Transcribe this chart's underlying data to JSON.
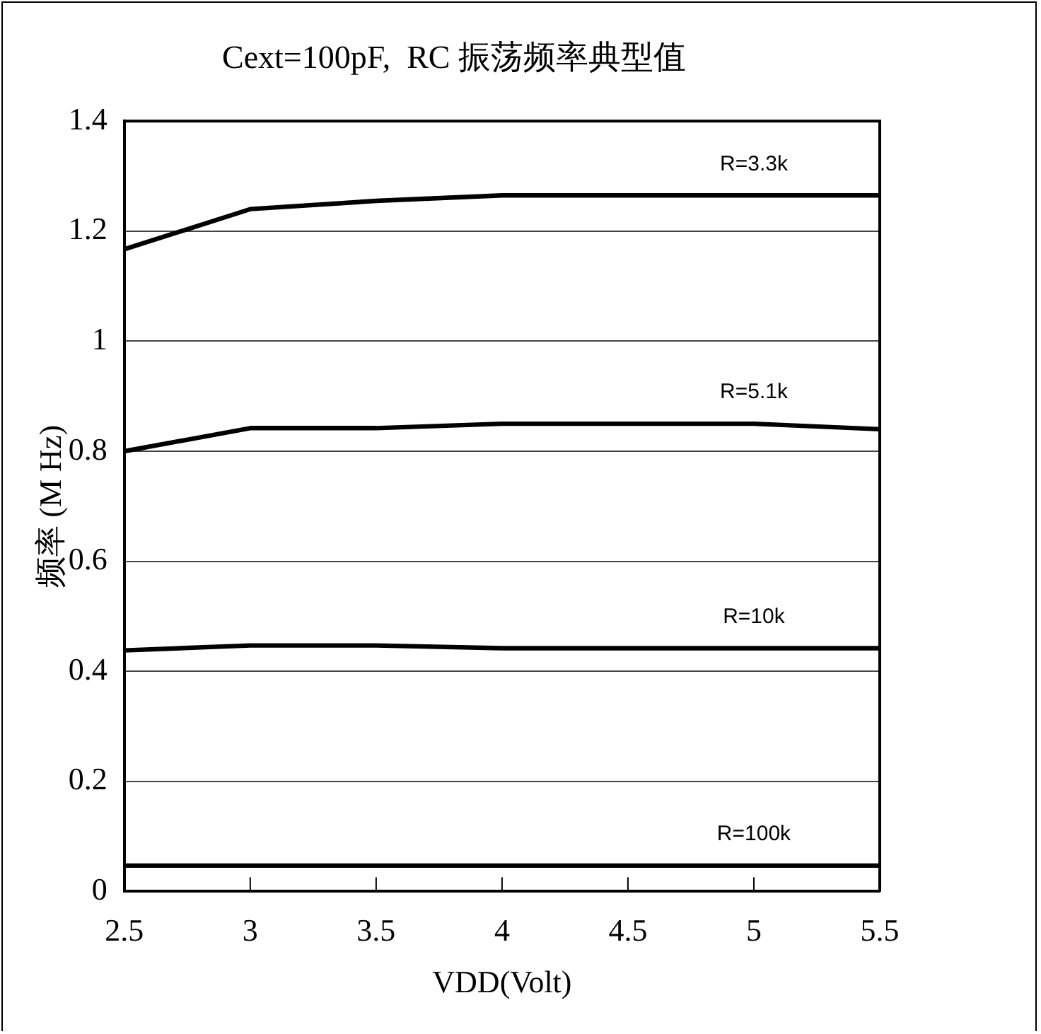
{
  "chart_data": {
    "type": "line",
    "title": "Cext=100pF,  RC 振荡频率典型值",
    "xlabel": "VDD(Volt)",
    "ylabel": "频率 (M Hz)",
    "x": [
      2.5,
      3,
      3.5,
      4,
      4.5,
      5,
      5.5
    ],
    "series": [
      {
        "name": "R=3.3k",
        "color": "#000000",
        "values": [
          1.167,
          1.24,
          1.255,
          1.265,
          1.265,
          1.265,
          1.265
        ]
      },
      {
        "name": "R=5.1k",
        "color": "#000000",
        "values": [
          0.8,
          0.842,
          0.842,
          0.85,
          0.85,
          0.85,
          0.84
        ]
      },
      {
        "name": "R=10k",
        "color": "#000000",
        "values": [
          0.438,
          0.447,
          0.447,
          0.442,
          0.442,
          0.442,
          0.442
        ]
      },
      {
        "name": "R=100k",
        "color": "#000000",
        "values": [
          0.047,
          0.047,
          0.047,
          0.047,
          0.047,
          0.047,
          0.047
        ]
      }
    ],
    "xlim": [
      2.5,
      5.5
    ],
    "xticks": [
      2.5,
      3,
      3.5,
      4,
      4.5,
      5,
      5.5
    ],
    "ylim": [
      0,
      1.4
    ],
    "yticks": [
      0,
      0.2,
      0.4,
      0.6,
      0.8,
      1,
      1.2,
      1.4
    ],
    "grid": "y",
    "legend": false,
    "marker": "none",
    "line_style": "solid"
  }
}
